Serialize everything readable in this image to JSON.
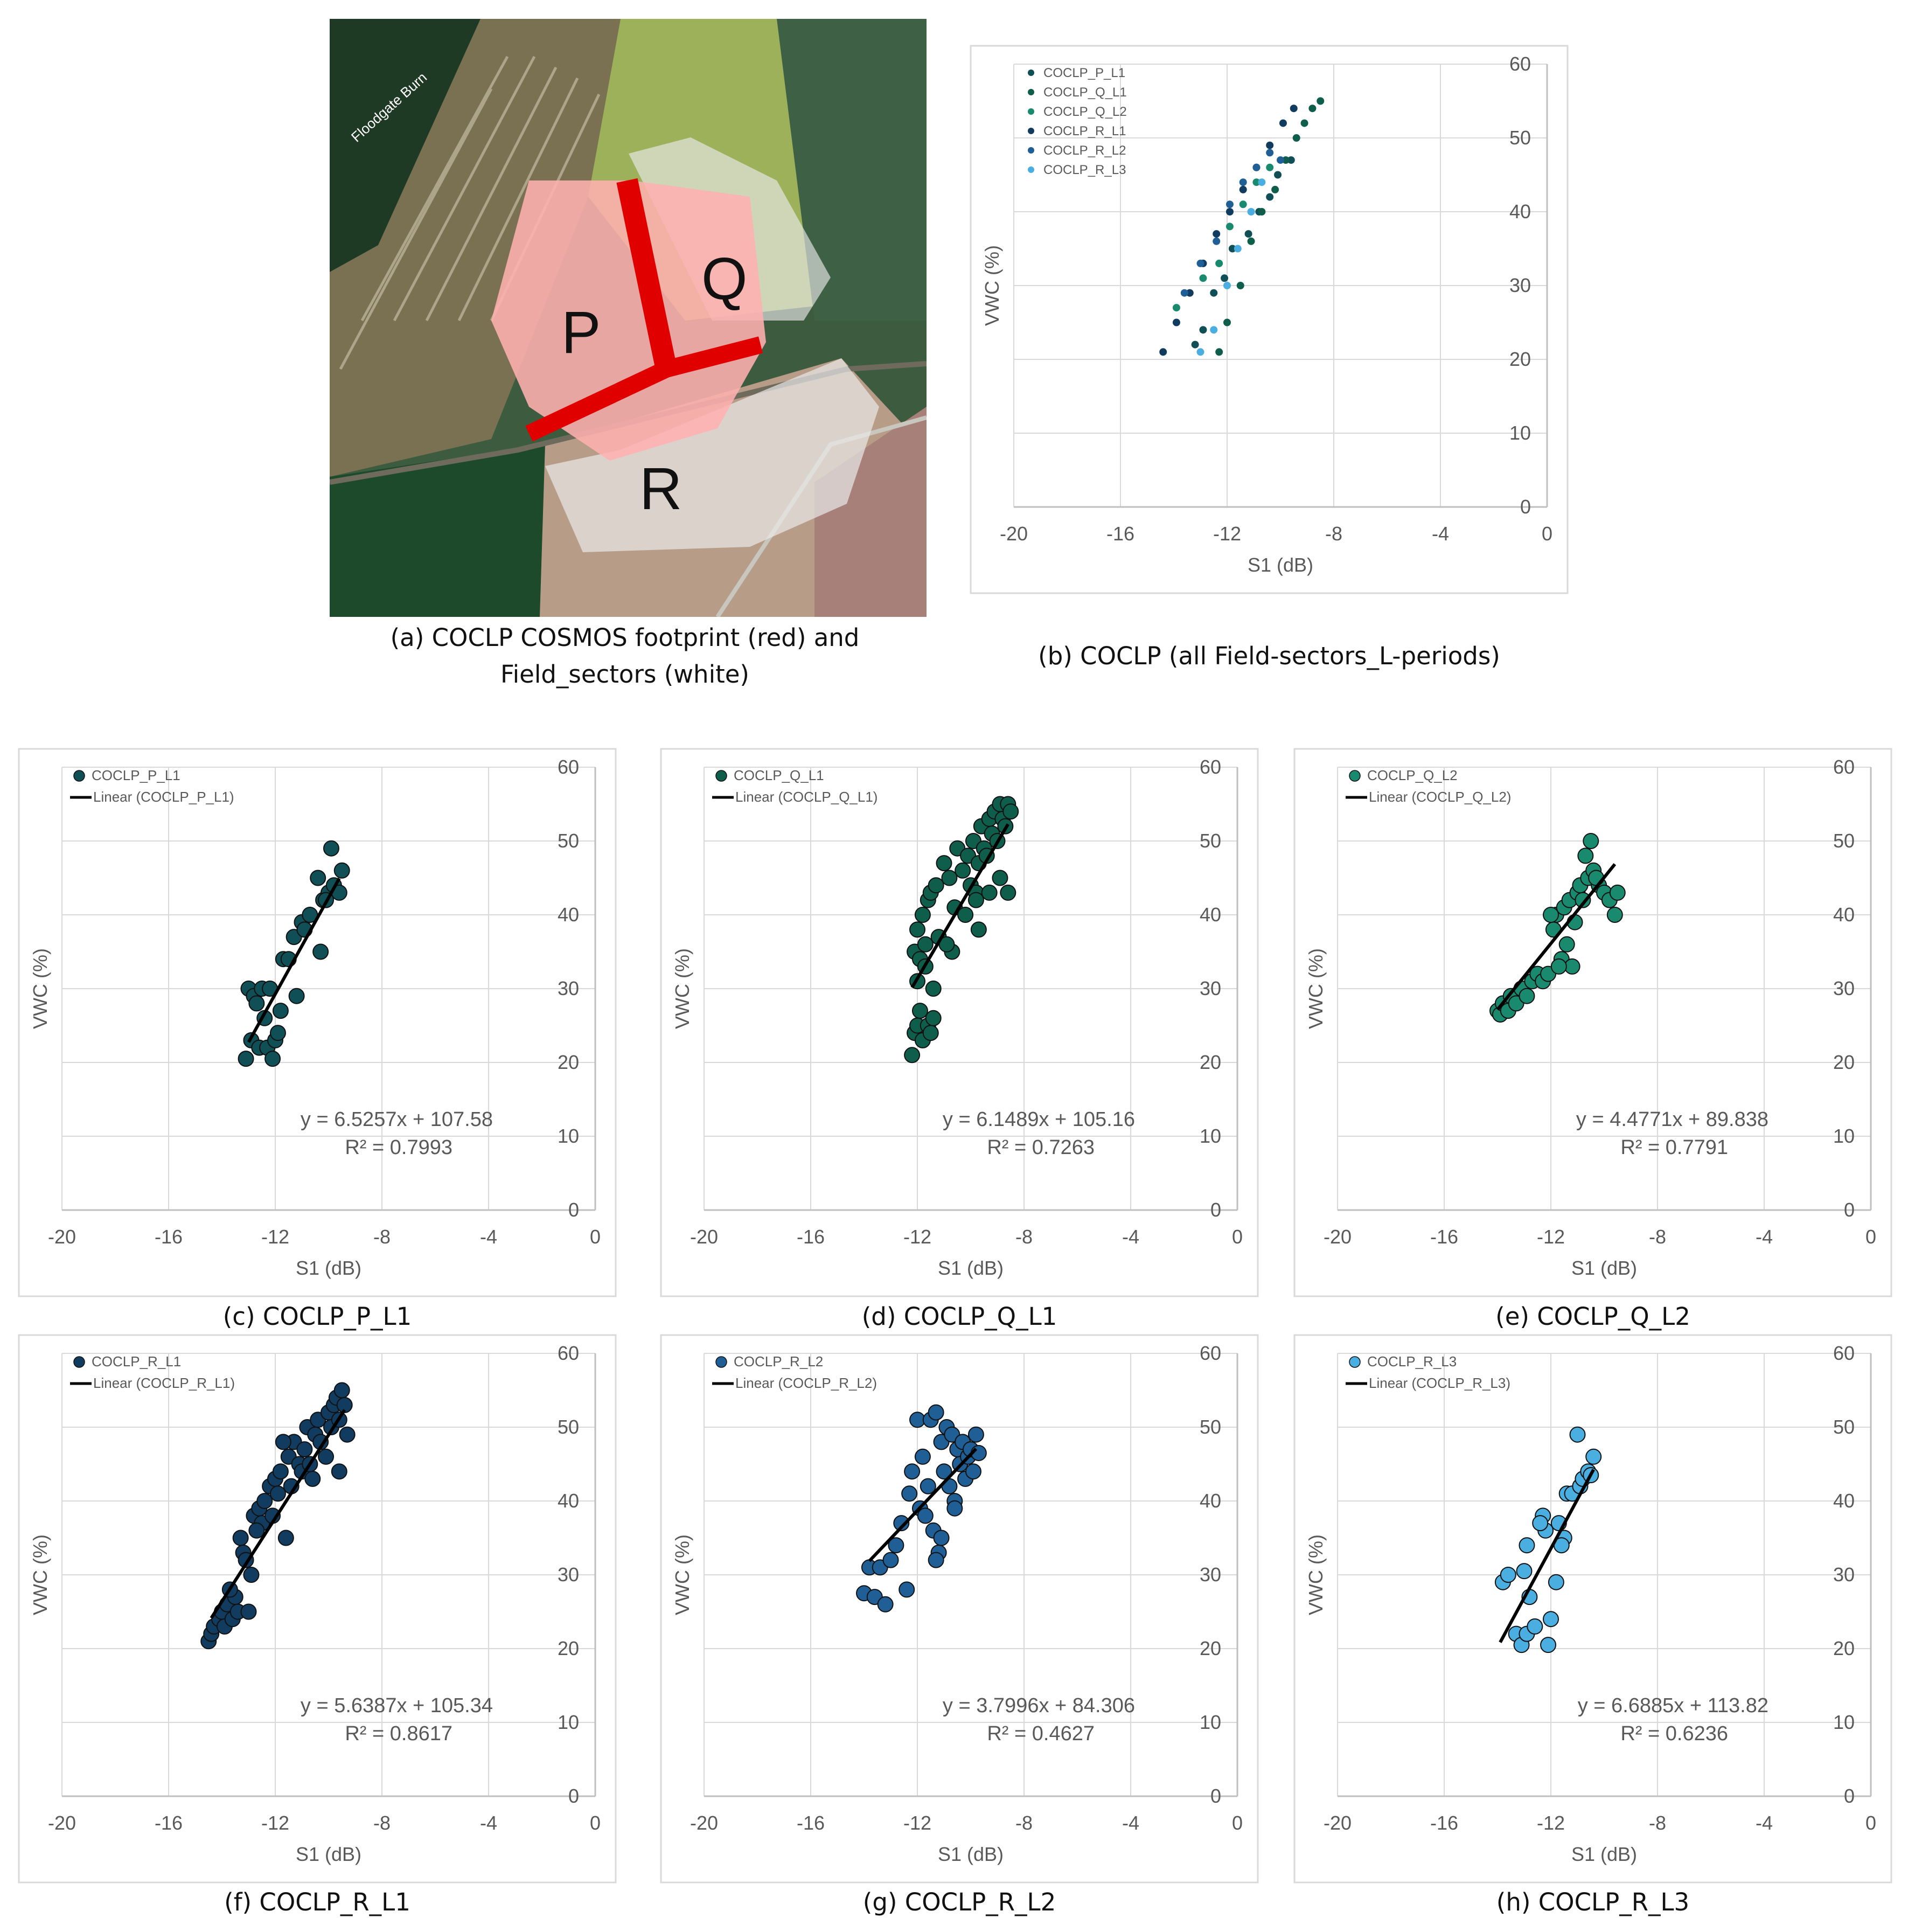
{
  "figure": {
    "map": {
      "river_label": "Floodgate Burn",
      "sector_labels": [
        "P",
        "Q",
        "R"
      ],
      "caption_letter": "(a)",
      "caption_line1": "COCLP COSMOS footprint (red) and",
      "caption_line2": "Field_sectors (white)"
    },
    "captions": {
      "b": {
        "letter": "(b)",
        "text": "COCLP (all Field-sectors_L-periods)"
      },
      "c": {
        "letter": "(c)",
        "text": "COCLP_P_L1"
      },
      "d": {
        "letter": "(d)",
        "text": "COCLP_Q_L1"
      },
      "e": {
        "letter": "(e)",
        "text": "COCLP_Q_L2"
      },
      "f": {
        "letter": "(f)",
        "text": "COCLP_R_L1"
      },
      "g": {
        "letter": "(g)",
        "text": "COCLP_R_L2"
      },
      "h": {
        "letter": "(h)",
        "text": "COCLP_R_L3"
      }
    }
  },
  "colors": {
    "P_L1": "#0f4f55",
    "Q_L1": "#0f5e4c",
    "Q_L2": "#1a8a6e",
    "R_L1": "#113b5f",
    "R_L2": "#1f5f96",
    "R_L3": "#4aaee0",
    "grid": "#d9d9d9",
    "axis_text": "#595959",
    "trend": "#000000"
  },
  "chart_data": [
    {
      "id": "b",
      "type": "scatter",
      "xlabel": "S1 (dB)",
      "ylabel": "VWC (%)",
      "xlim": [
        -20,
        0
      ],
      "ylim": [
        0,
        60
      ],
      "xticks": [
        "-20",
        "-16",
        "-12",
        "-8",
        "-4",
        "0"
      ],
      "yticks": [
        "0",
        "10",
        "20",
        "30",
        "40",
        "50",
        "60"
      ],
      "series": [
        {
          "name": "COCLP_P_L1",
          "color_key": "P_L1",
          "x": [
            -13.2,
            -12.9,
            -12.5,
            -12.1,
            -11.8,
            -11.2,
            -10.8,
            -10.4,
            -10.1,
            -9.6
          ],
          "y": [
            22,
            24,
            29,
            31,
            35,
            37,
            40,
            42,
            45,
            47
          ]
        },
        {
          "name": "COCLP_Q_L1",
          "color_key": "Q_L1",
          "x": [
            -12.3,
            -12.0,
            -11.5,
            -11.1,
            -10.7,
            -10.2,
            -9.8,
            -9.4,
            -9.1,
            -8.8,
            -8.5
          ],
          "y": [
            21,
            25,
            30,
            36,
            40,
            43,
            47,
            50,
            52,
            54,
            55
          ]
        },
        {
          "name": "COCLP_Q_L2",
          "color_key": "Q_L2",
          "x": [
            -13.9,
            -13.4,
            -12.9,
            -12.3,
            -11.9,
            -11.4,
            -10.9,
            -10.4
          ],
          "y": [
            27,
            29,
            31,
            33,
            38,
            41,
            44,
            46
          ]
        },
        {
          "name": "COCLP_R_L1",
          "color_key": "R_L1",
          "x": [
            -14.4,
            -13.9,
            -13.4,
            -12.9,
            -12.4,
            -11.9,
            -11.4,
            -10.9,
            -10.4,
            -9.9,
            -9.5
          ],
          "y": [
            21,
            25,
            29,
            33,
            37,
            40,
            43,
            46,
            49,
            52,
            54
          ]
        },
        {
          "name": "COCLP_R_L2",
          "color_key": "R_L2",
          "x": [
            -13.6,
            -13.0,
            -12.4,
            -11.9,
            -11.4,
            -10.9,
            -10.4,
            -10.0
          ],
          "y": [
            29,
            33,
            36,
            41,
            44,
            46,
            48,
            47
          ]
        },
        {
          "name": "COCLP_R_L3",
          "color_key": "R_L3",
          "x": [
            -13.0,
            -12.5,
            -12.0,
            -11.6,
            -11.1,
            -10.7
          ],
          "y": [
            21,
            24,
            30,
            35,
            40,
            44
          ]
        }
      ]
    },
    {
      "id": "c",
      "type": "scatter",
      "xlabel": "S1 (dB)",
      "ylabel": "VWC (%)",
      "xlim": [
        -20,
        0
      ],
      "ylim": [
        0,
        60
      ],
      "xticks": [
        "-20",
        "-16",
        "-12",
        "-8",
        "-4",
        "0"
      ],
      "yticks": [
        "0",
        "10",
        "20",
        "30",
        "40",
        "50",
        "60"
      ],
      "series": [
        {
          "name": "COCLP_P_L1",
          "color_key": "P_L1",
          "x": [
            -13.1,
            -13.0,
            -12.9,
            -12.8,
            -12.6,
            -12.5,
            -12.3,
            -12.2,
            -12.1,
            -12.0,
            -11.8,
            -11.7,
            -11.5,
            -11.3,
            -11.2,
            -11.0,
            -10.9,
            -10.7,
            -10.4,
            -10.3,
            -10.2,
            -10.0,
            -9.9,
            -9.8,
            -9.6,
            -9.5,
            -10.1,
            -11.9,
            -12.4,
            -12.7
          ],
          "y": [
            20.5,
            30,
            23,
            29,
            22,
            30,
            22,
            30,
            20.5,
            23,
            27,
            34,
            34,
            37,
            29,
            39,
            38,
            40,
            45,
            35,
            42,
            43,
            49,
            44,
            43,
            46,
            42,
            24,
            26,
            28
          ]
        }
      ],
      "trend": {
        "label": "Linear (COCLP_P_L1)",
        "x_range": [
          -13.0,
          -9.6
        ],
        "equation": "y = 6.5257x + 107.58",
        "r2": "R² = 0.7993",
        "slope": 6.5257,
        "intercept": 107.58
      }
    },
    {
      "id": "d",
      "type": "scatter",
      "xlabel": "S1 (dB)",
      "ylabel": "VWC (%)",
      "xlim": [
        -20,
        0
      ],
      "ylim": [
        0,
        60
      ],
      "xticks": [
        "-20",
        "-16",
        "-12",
        "-8",
        "-4",
        "0"
      ],
      "yticks": [
        "0",
        "10",
        "20",
        "30",
        "40",
        "50",
        "60"
      ],
      "series": [
        {
          "name": "COCLP_Q_L1",
          "color_key": "Q_L1",
          "x": [
            -12.2,
            -12.1,
            -12.0,
            -11.9,
            -11.8,
            -11.6,
            -11.5,
            -11.4,
            -12.1,
            -11.9,
            -11.7,
            -12.0,
            -11.8,
            -11.6,
            -11.5,
            -11.3,
            -11.0,
            -10.8,
            -10.6,
            -10.5,
            -10.3,
            -10.1,
            -10.0,
            -9.9,
            -9.8,
            -9.7,
            -9.6,
            -9.5,
            -9.4,
            -9.3,
            -9.2,
            -9.1,
            -9.0,
            -8.9,
            -8.8,
            -8.7,
            -8.6,
            -8.5,
            -8.9,
            -9.3,
            -9.7,
            -10.2,
            -10.7,
            -11.2,
            -12.0,
            -11.4,
            -8.6,
            -9.8,
            -10.9,
            -11.7
          ],
          "y": [
            21,
            24,
            25,
            27,
            23,
            25,
            24,
            26,
            35,
            34,
            36,
            38,
            40,
            42,
            43,
            44,
            47,
            45,
            41,
            49,
            46,
            48,
            44,
            50,
            43,
            47,
            52,
            49,
            48,
            53,
            51,
            54,
            50,
            55,
            53,
            52,
            55,
            54,
            45,
            43,
            38,
            40,
            35,
            37,
            31,
            30,
            43,
            42,
            36,
            33
          ]
        }
      ],
      "trend": {
        "label": "Linear (COCLP_Q_L1)",
        "x_range": [
          -12.2,
          -8.6
        ],
        "equation": "y = 6.1489x + 105.16",
        "r2": "R² = 0.7263",
        "slope": 6.1489,
        "intercept": 105.16
      }
    },
    {
      "id": "e",
      "type": "scatter",
      "xlabel": "S1 (dB)",
      "ylabel": "VWC (%)",
      "xlim": [
        -20,
        0
      ],
      "ylim": [
        0,
        60
      ],
      "xticks": [
        "-20",
        "-16",
        "-12",
        "-8",
        "-4",
        "0"
      ],
      "yticks": [
        "0",
        "10",
        "20",
        "30",
        "40",
        "50",
        "60"
      ],
      "series": [
        {
          "name": "COCLP_Q_L2",
          "color_key": "Q_L2",
          "x": [
            -14.0,
            -13.9,
            -13.8,
            -13.6,
            -13.5,
            -13.3,
            -13.1,
            -12.9,
            -12.7,
            -12.5,
            -12.3,
            -12.1,
            -11.9,
            -11.8,
            -11.6,
            -11.5,
            -11.3,
            -11.2,
            -11.0,
            -10.9,
            -10.8,
            -10.6,
            -10.5,
            -10.4,
            -10.2,
            -10.0,
            -9.8,
            -9.6,
            -9.5,
            -11.4,
            -11.7,
            -12.0,
            -10.7,
            -10.3,
            -11.1
          ],
          "y": [
            27,
            26.5,
            28,
            27,
            29,
            28,
            30,
            29,
            31,
            32,
            31,
            32,
            38,
            40,
            34,
            41,
            42,
            33,
            43,
            44,
            42,
            45,
            50,
            46,
            44,
            43,
            42,
            40,
            43,
            36,
            33,
            40,
            48,
            45,
            39
          ]
        }
      ],
      "trend": {
        "label": "Linear (COCLP_Q_L2)",
        "x_range": [
          -14.0,
          -9.6
        ],
        "equation": "y = 4.4771x + 89.838",
        "r2": "R² = 0.7791",
        "slope": 4.4771,
        "intercept": 89.838
      }
    },
    {
      "id": "f",
      "type": "scatter",
      "xlabel": "S1 (dB)",
      "ylabel": "VWC (%)",
      "xlim": [
        -20,
        0
      ],
      "ylim": [
        0,
        60
      ],
      "xticks": [
        "-20",
        "-16",
        "-12",
        "-8",
        "-4",
        "0"
      ],
      "yticks": [
        "0",
        "10",
        "20",
        "30",
        "40",
        "50",
        "60"
      ],
      "series": [
        {
          "name": "COCLP_R_L1",
          "color_key": "R_L1",
          "x": [
            -14.5,
            -14.4,
            -14.3,
            -14.1,
            -14.0,
            -13.9,
            -13.8,
            -13.6,
            -13.5,
            -13.4,
            -13.3,
            -13.2,
            -13.0,
            -12.9,
            -12.8,
            -12.6,
            -12.5,
            -12.4,
            -12.2,
            -12.1,
            -12.0,
            -11.9,
            -11.8,
            -11.6,
            -11.5,
            -11.4,
            -11.3,
            -11.1,
            -11.0,
            -10.9,
            -10.8,
            -10.6,
            -10.5,
            -10.4,
            -10.3,
            -10.1,
            -10.0,
            -9.9,
            -9.8,
            -9.7,
            -9.6,
            -9.5,
            -9.4,
            -9.3,
            -13.7,
            -13.1,
            -12.7,
            -11.7,
            -10.7,
            -9.6
          ],
          "y": [
            21,
            22,
            23,
            24,
            25,
            23,
            26,
            24,
            27,
            25,
            35,
            33,
            25,
            30,
            38,
            39,
            37,
            40,
            42,
            38,
            43,
            41,
            44,
            35,
            46,
            42,
            48,
            45,
            44,
            47,
            50,
            43,
            49,
            51,
            48,
            46,
            52,
            50,
            53,
            54,
            51,
            55,
            53,
            49,
            28,
            32,
            36,
            48,
            45,
            44
          ]
        }
      ],
      "trend": {
        "label": "Linear (COCLP_R_L1)",
        "x_range": [
          -14.4,
          -9.4
        ],
        "equation": "y = 5.6387x + 105.34",
        "r2": "R² = 0.8617",
        "slope": 5.6387,
        "intercept": 105.34
      }
    },
    {
      "id": "g",
      "type": "scatter",
      "xlabel": "S1 (dB)",
      "ylabel": "VWC (%)",
      "xlim": [
        -20,
        0
      ],
      "ylim": [
        0,
        60
      ],
      "xticks": [
        "-20",
        "-16",
        "-12",
        "-8",
        "-4",
        "0"
      ],
      "yticks": [
        "0",
        "10",
        "20",
        "30",
        "40",
        "50",
        "60"
      ],
      "series": [
        {
          "name": "COCLP_R_L2",
          "color_key": "R_L2",
          "x": [
            -14.0,
            -13.8,
            -13.6,
            -13.4,
            -13.2,
            -13.0,
            -12.8,
            -12.6,
            -12.4,
            -12.2,
            -12.0,
            -11.9,
            -11.8,
            -11.6,
            -11.5,
            -11.4,
            -11.3,
            -11.2,
            -11.1,
            -11.0,
            -10.9,
            -10.8,
            -10.7,
            -10.6,
            -10.5,
            -10.4,
            -10.3,
            -10.2,
            -10.1,
            -10.0,
            -9.9,
            -9.8,
            -9.7,
            -11.7,
            -11.1,
            -10.6,
            -12.3,
            -11.3
          ],
          "y": [
            27.5,
            31,
            27,
            31,
            26,
            32,
            34,
            37,
            28,
            44,
            51,
            39,
            46,
            42,
            51,
            36,
            52,
            33,
            48,
            44,
            50,
            42,
            49,
            40,
            47,
            45,
            48,
            43,
            46,
            47,
            44,
            49,
            46.5,
            38,
            35,
            39,
            41,
            32
          ]
        }
      ],
      "trend": {
        "label": "Linear (COCLP_R_L2)",
        "x_range": [
          -13.8,
          -9.8
        ],
        "equation": "y = 3.7996x + 84.306",
        "r2": "R² = 0.4627",
        "slope": 3.7996,
        "intercept": 84.306
      }
    },
    {
      "id": "h",
      "type": "scatter",
      "xlabel": "S1 (dB)",
      "ylabel": "VWC (%)",
      "xlim": [
        -20,
        0
      ],
      "ylim": [
        0,
        60
      ],
      "xticks": [
        "-20",
        "-16",
        "-12",
        "-8",
        "-4",
        "0"
      ],
      "yticks": [
        "0",
        "10",
        "20",
        "30",
        "40",
        "50",
        "60"
      ],
      "series": [
        {
          "name": "COCLP_R_L3",
          "color_key": "R_L3",
          "x": [
            -13.8,
            -13.6,
            -13.3,
            -13.1,
            -13.0,
            -12.9,
            -12.8,
            -12.6,
            -12.3,
            -12.2,
            -12.1,
            -12.0,
            -11.8,
            -11.7,
            -11.5,
            -11.4,
            -11.2,
            -11.0,
            -10.9,
            -10.8,
            -10.6,
            -10.5,
            -10.4,
            -11.6,
            -12.4,
            -12.9
          ],
          "y": [
            29,
            30,
            22,
            20.5,
            30.5,
            22,
            27,
            23,
            38,
            36,
            20.5,
            24,
            29,
            37,
            35,
            41,
            41,
            49,
            42,
            43,
            44,
            43.5,
            46,
            34,
            37,
            34
          ]
        }
      ],
      "trend": {
        "label": "Linear (COCLP_R_L3)",
        "x_range": [
          -13.9,
          -10.4
        ],
        "equation": "y = 6.6885x + 113.82",
        "r2": "R² = 0.6236",
        "slope": 6.6885,
        "intercept": 113.82
      }
    }
  ]
}
